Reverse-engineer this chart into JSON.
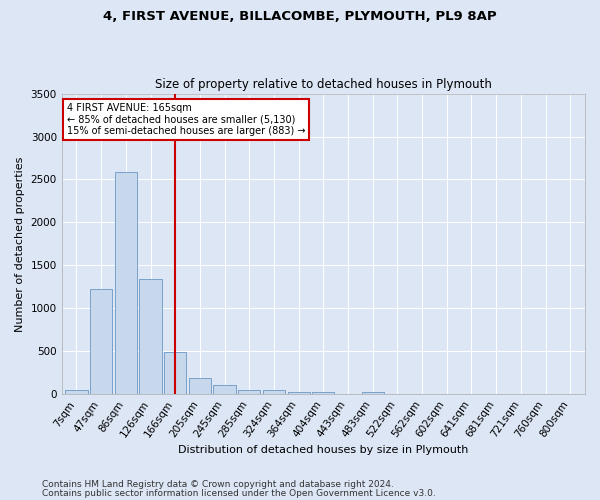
{
  "title": "4, FIRST AVENUE, BILLACOMBE, PLYMOUTH, PL9 8AP",
  "subtitle": "Size of property relative to detached houses in Plymouth",
  "xlabel": "Distribution of detached houses by size in Plymouth",
  "ylabel": "Number of detached properties",
  "bar_labels": [
    "7sqm",
    "47sqm",
    "86sqm",
    "126sqm",
    "166sqm",
    "205sqm",
    "245sqm",
    "285sqm",
    "324sqm",
    "364sqm",
    "404sqm",
    "443sqm",
    "483sqm",
    "522sqm",
    "562sqm",
    "602sqm",
    "641sqm",
    "681sqm",
    "721sqm",
    "760sqm",
    "800sqm"
  ],
  "bar_values": [
    55,
    1230,
    2590,
    1340,
    490,
    195,
    110,
    55,
    45,
    30,
    25,
    0,
    25,
    0,
    0,
    0,
    0,
    0,
    0,
    0,
    0
  ],
  "bar_color": "#c8d8ec",
  "bar_edge_color": "#5588bb",
  "vline_x_index": 4,
  "vline_color": "#cc0000",
  "annotation_line1": "4 FIRST AVENUE: 165sqm",
  "annotation_line2": "← 85% of detached houses are smaller (5,130)",
  "annotation_line3": "15% of semi-detached houses are larger (883) →",
  "annotation_box_color": "#ffffff",
  "annotation_box_edge": "#cc0000",
  "ylim": [
    0,
    3500
  ],
  "yticks": [
    0,
    500,
    1000,
    1500,
    2000,
    2500,
    3000,
    3500
  ],
  "footer1": "Contains HM Land Registry data © Crown copyright and database right 2024.",
  "footer2": "Contains public sector information licensed under the Open Government Licence v3.0.",
  "bg_color": "#dce6f5",
  "plot_bg_color": "#dce6f5",
  "title_fontsize": 9.5,
  "subtitle_fontsize": 8.5,
  "axis_label_fontsize": 8,
  "tick_fontsize": 7.5,
  "footer_fontsize": 6.5
}
